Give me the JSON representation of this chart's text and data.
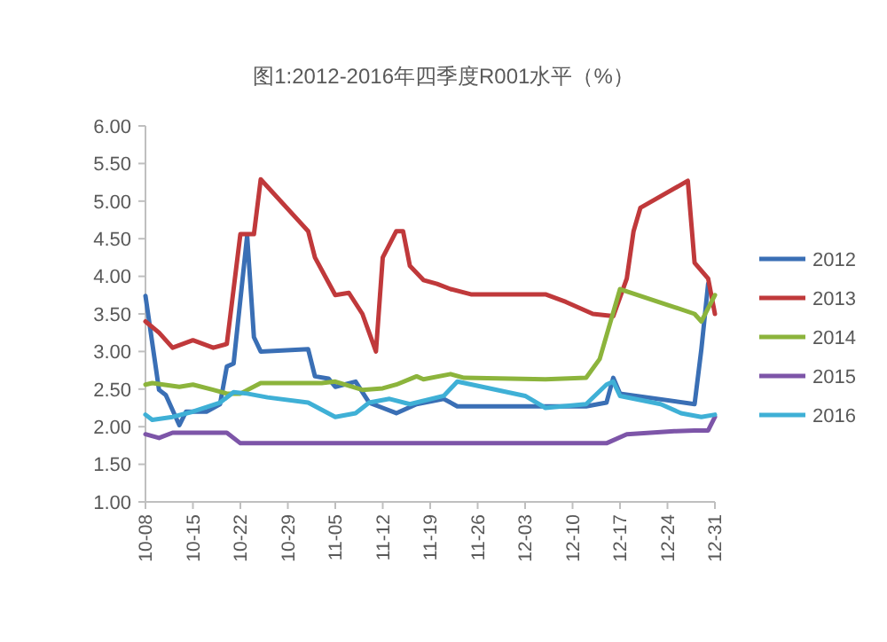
{
  "chart_data": {
    "type": "line",
    "title": "图1:2012-2016年四季度R001水平（%）",
    "legend": "right",
    "grid": false,
    "marker": "none",
    "line_style": "solid",
    "xlim": [
      "--10-08",
      "--12-31"
    ],
    "xticks": [
      {
        "value": "--10-08",
        "label": "10-08"
      },
      {
        "value": "--10-15",
        "label": "10-15"
      },
      {
        "value": "--10-22",
        "label": "10-22"
      },
      {
        "value": "--10-29",
        "label": "10-29"
      },
      {
        "value": "--11-05",
        "label": "11-05"
      },
      {
        "value": "--11-12",
        "label": "11-12"
      },
      {
        "value": "--11-19",
        "label": "11-19"
      },
      {
        "value": "--11-26",
        "label": "11-26"
      },
      {
        "value": "--12-03",
        "label": "12-03"
      },
      {
        "value": "--12-10",
        "label": "12-10"
      },
      {
        "value": "--12-17",
        "label": "12-17"
      },
      {
        "value": "--12-24",
        "label": "12-24"
      },
      {
        "value": "--12-31",
        "label": "12-31"
      }
    ],
    "ylim": [
      1,
      6
    ],
    "yticks": [
      {
        "value": 1,
        "label": "1.00"
      },
      {
        "value": 1.5,
        "label": "1.50"
      },
      {
        "value": 2,
        "label": "2.00"
      },
      {
        "value": 2.5,
        "label": "2.50"
      },
      {
        "value": 3,
        "label": "3.00"
      },
      {
        "value": 3.5,
        "label": "3.50"
      },
      {
        "value": 4,
        "label": "4.00"
      },
      {
        "value": 4.5,
        "label": "4.50"
      },
      {
        "value": 5,
        "label": "5.00"
      },
      {
        "value": 5.5,
        "label": "5.50"
      },
      {
        "value": 6,
        "label": "6.00"
      }
    ],
    "series": [
      {
        "name": "2012",
        "color": "#3a6fb5",
        "x": [
          "--10-08",
          "--10-10",
          "--10-11",
          "--10-13",
          "--10-14",
          "--10-17",
          "--10-19",
          "--10-20",
          "--10-21",
          "--10-23",
          "--10-24",
          "--10-25",
          "--11-01",
          "--11-02",
          "--11-04",
          "--11-05",
          "--11-08",
          "--11-10",
          "--11-12",
          "--11-14",
          "--11-17",
          "--11-21",
          "--11-23",
          "--12-12",
          "--12-15",
          "--12-16",
          "--12-17",
          "--12-28",
          "--12-29",
          "--12-30"
        ],
        "values": [
          3.74,
          2.49,
          2.42,
          2.02,
          2.2,
          2.2,
          2.3,
          2.8,
          2.84,
          4.54,
          3.19,
          3.0,
          3.03,
          2.67,
          2.64,
          2.53,
          2.6,
          2.32,
          2.25,
          2.18,
          2.3,
          2.37,
          2.27,
          2.27,
          2.32,
          2.65,
          2.44,
          2.3,
          3.03,
          3.9
        ]
      },
      {
        "name": "2013",
        "color": "#c0393b",
        "x": [
          "--10-08",
          "--10-10",
          "--10-12",
          "--10-15",
          "--10-18",
          "--10-20",
          "--10-22",
          "--10-24",
          "--10-25",
          "--11-01",
          "--11-02",
          "--11-05",
          "--11-07",
          "--11-09",
          "--11-11",
          "--11-12",
          "--11-14",
          "--11-15",
          "--11-16",
          "--11-18",
          "--11-20",
          "--11-22",
          "--11-25",
          "--12-06",
          "--12-09",
          "--12-13",
          "--12-16",
          "--12-18",
          "--12-19",
          "--12-20",
          "--12-27",
          "--12-28",
          "--12-30",
          "--12-31"
        ],
        "values": [
          3.4,
          3.25,
          3.05,
          3.15,
          3.05,
          3.1,
          4.56,
          4.56,
          5.29,
          4.6,
          4.25,
          3.75,
          3.78,
          3.5,
          3.0,
          4.25,
          4.6,
          4.6,
          4.14,
          3.95,
          3.9,
          3.83,
          3.76,
          3.76,
          3.66,
          3.5,
          3.47,
          3.97,
          4.6,
          4.91,
          5.27,
          4.18,
          3.97,
          3.5
        ]
      },
      {
        "name": "2014",
        "color": "#8cb43c",
        "x": [
          "--10-08",
          "--10-09",
          "--10-13",
          "--10-15",
          "--10-18",
          "--10-20",
          "--10-22",
          "--10-25",
          "--11-03",
          "--11-05",
          "--11-09",
          "--11-12",
          "--11-14",
          "--11-17",
          "--11-18",
          "--11-22",
          "--11-24",
          "--12-06",
          "--12-12",
          "--12-14",
          "--12-17",
          "--12-24",
          "--12-28",
          "--12-29",
          "--12-31"
        ],
        "values": [
          2.56,
          2.58,
          2.53,
          2.56,
          2.49,
          2.44,
          2.44,
          2.58,
          2.58,
          2.6,
          2.49,
          2.51,
          2.56,
          2.67,
          2.63,
          2.7,
          2.65,
          2.63,
          2.65,
          2.9,
          3.83,
          3.62,
          3.5,
          3.4,
          3.75
        ]
      },
      {
        "name": "2015",
        "color": "#7d55a8",
        "x": [
          "--10-08",
          "--10-10",
          "--10-12",
          "--10-20",
          "--10-22",
          "--11-12",
          "--12-15",
          "--12-18",
          "--12-25",
          "--12-28",
          "--12-30",
          "--12-31"
        ],
        "values": [
          1.9,
          1.85,
          1.92,
          1.92,
          1.78,
          1.78,
          1.78,
          1.9,
          1.94,
          1.95,
          1.95,
          2.13
        ]
      },
      {
        "name": "2016",
        "color": "#3fb0d6",
        "x": [
          "--10-08",
          "--10-09",
          "--10-12",
          "--10-15",
          "--10-19",
          "--10-21",
          "--10-23",
          "--10-26",
          "--11-01",
          "--11-05",
          "--11-08",
          "--11-10",
          "--11-13",
          "--11-16",
          "--11-21",
          "--11-23",
          "--12-03",
          "--12-06",
          "--12-12",
          "--12-15",
          "--12-16",
          "--12-17",
          "--12-23",
          "--12-26",
          "--12-29",
          "--12-31"
        ],
        "values": [
          2.16,
          2.09,
          2.13,
          2.2,
          2.32,
          2.46,
          2.44,
          2.39,
          2.32,
          2.13,
          2.18,
          2.32,
          2.37,
          2.3,
          2.41,
          2.6,
          2.41,
          2.25,
          2.3,
          2.56,
          2.6,
          2.41,
          2.3,
          2.18,
          2.13,
          2.16
        ]
      }
    ]
  }
}
